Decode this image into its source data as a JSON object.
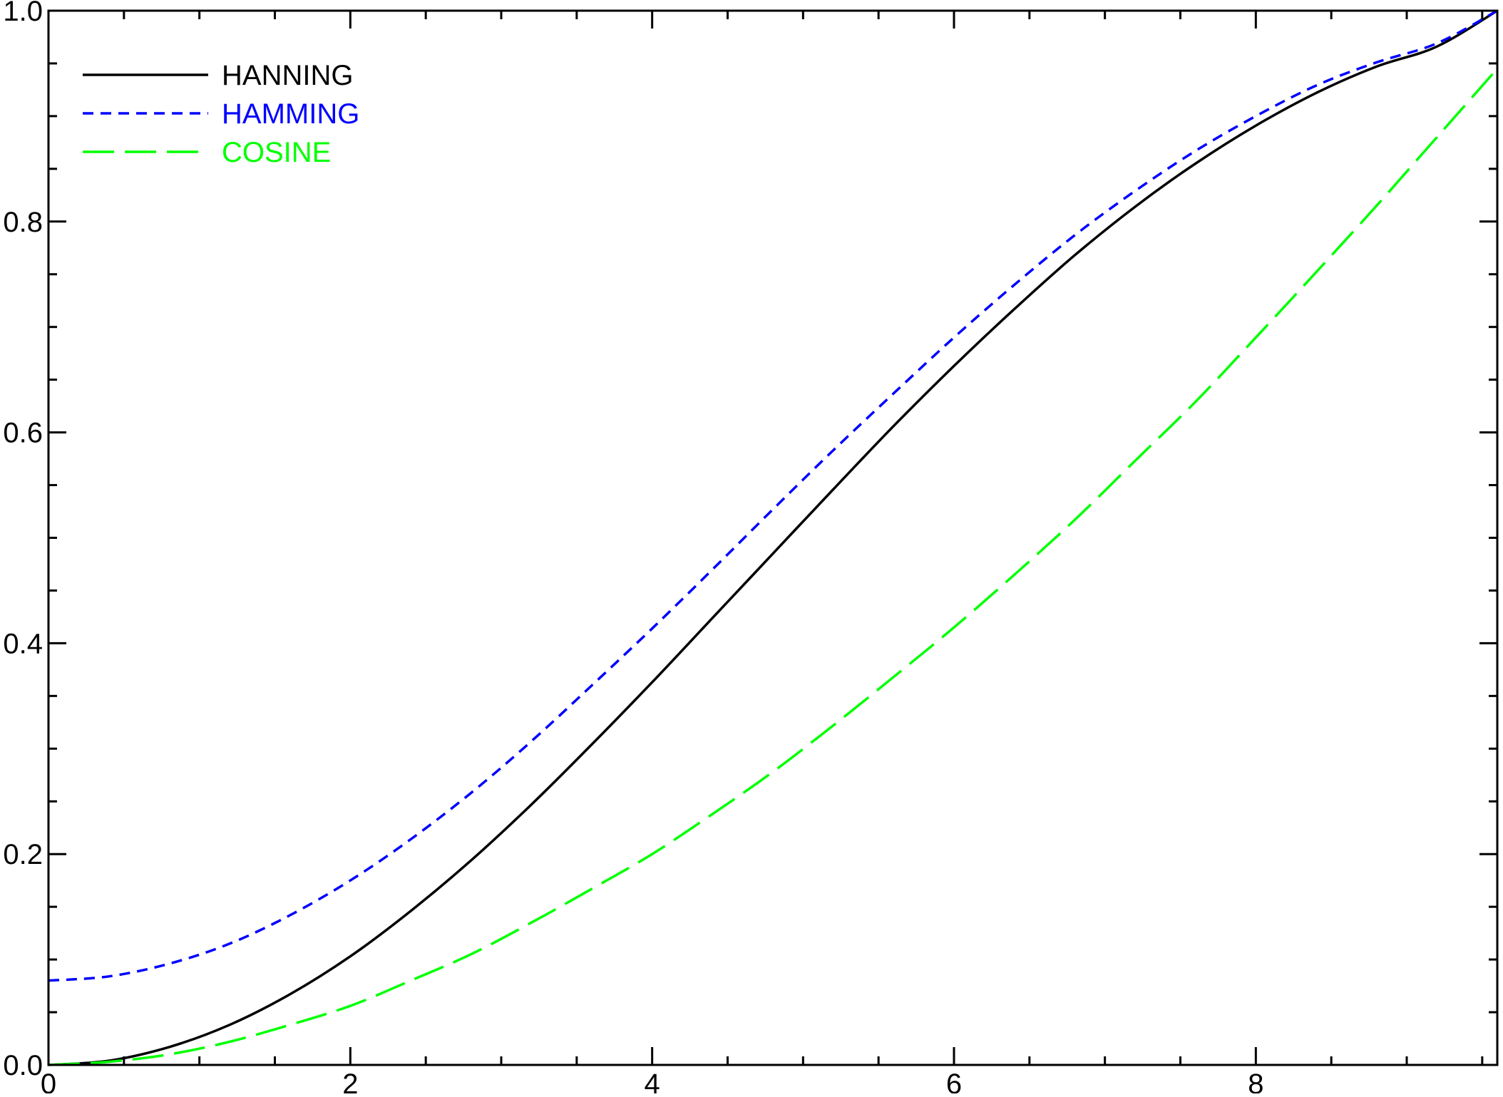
{
  "chart_data": {
    "type": "line",
    "title": "",
    "xlabel": "",
    "ylabel": "",
    "xlim": [
      0,
      9.6
    ],
    "ylim": [
      0,
      1.0
    ],
    "grid": false,
    "legend_position": "top-left",
    "x_ticks": [
      {
        "value": 0,
        "label": "0"
      },
      {
        "value": 2,
        "label": "2"
      },
      {
        "value": 4,
        "label": "4"
      },
      {
        "value": 6,
        "label": "6"
      },
      {
        "value": 8,
        "label": "8"
      }
    ],
    "y_ticks": [
      {
        "value": 0.0,
        "label": "0.0"
      },
      {
        "value": 0.2,
        "label": "0.2"
      },
      {
        "value": 0.4,
        "label": "0.4"
      },
      {
        "value": 0.6,
        "label": "0.6"
      },
      {
        "value": 0.8,
        "label": "0.8"
      },
      {
        "value": 1.0,
        "label": "1.0"
      }
    ],
    "x": [
      0,
      0.4,
      0.8,
      1.2,
      1.6,
      2.0,
      2.4,
      2.8,
      3.2,
      3.6,
      4.0,
      4.4,
      4.8,
      5.2,
      5.6,
      6.0,
      6.4,
      6.8,
      7.2,
      7.6,
      8.0,
      8.4,
      8.8,
      9.2,
      9.6
    ],
    "series": [
      {
        "name": "HANNING",
        "color": "#000000",
        "dash": "solid",
        "values": [
          0.0,
          0.004,
          0.017,
          0.038,
          0.067,
          0.103,
          0.146,
          0.194,
          0.247,
          0.304,
          0.363,
          0.424,
          0.485,
          0.546,
          0.606,
          0.663,
          0.717,
          0.768,
          0.814,
          0.855,
          0.891,
          0.922,
          0.947,
          0.966,
          1.0
        ]
      },
      {
        "name": "HAMMING",
        "color": "#0000ff",
        "dash": "short-dash",
        "values": [
          0.08,
          0.084,
          0.096,
          0.115,
          0.142,
          0.175,
          0.214,
          0.258,
          0.307,
          0.36,
          0.414,
          0.47,
          0.527,
          0.583,
          0.637,
          0.69,
          0.74,
          0.787,
          0.829,
          0.867,
          0.9,
          0.929,
          0.951,
          0.969,
          1.0
        ]
      },
      {
        "name": "COSINE",
        "color": "#00ff00",
        "dash": "long-dash",
        "values": [
          0.0,
          0.003,
          0.01,
          0.022,
          0.038,
          0.056,
          0.08,
          0.105,
          0.135,
          0.167,
          0.2,
          0.238,
          0.278,
          0.322,
          0.368,
          0.415,
          0.465,
          0.517,
          0.573,
          0.629,
          0.69,
          0.752,
          0.815,
          0.88,
          0.945
        ]
      }
    ]
  }
}
